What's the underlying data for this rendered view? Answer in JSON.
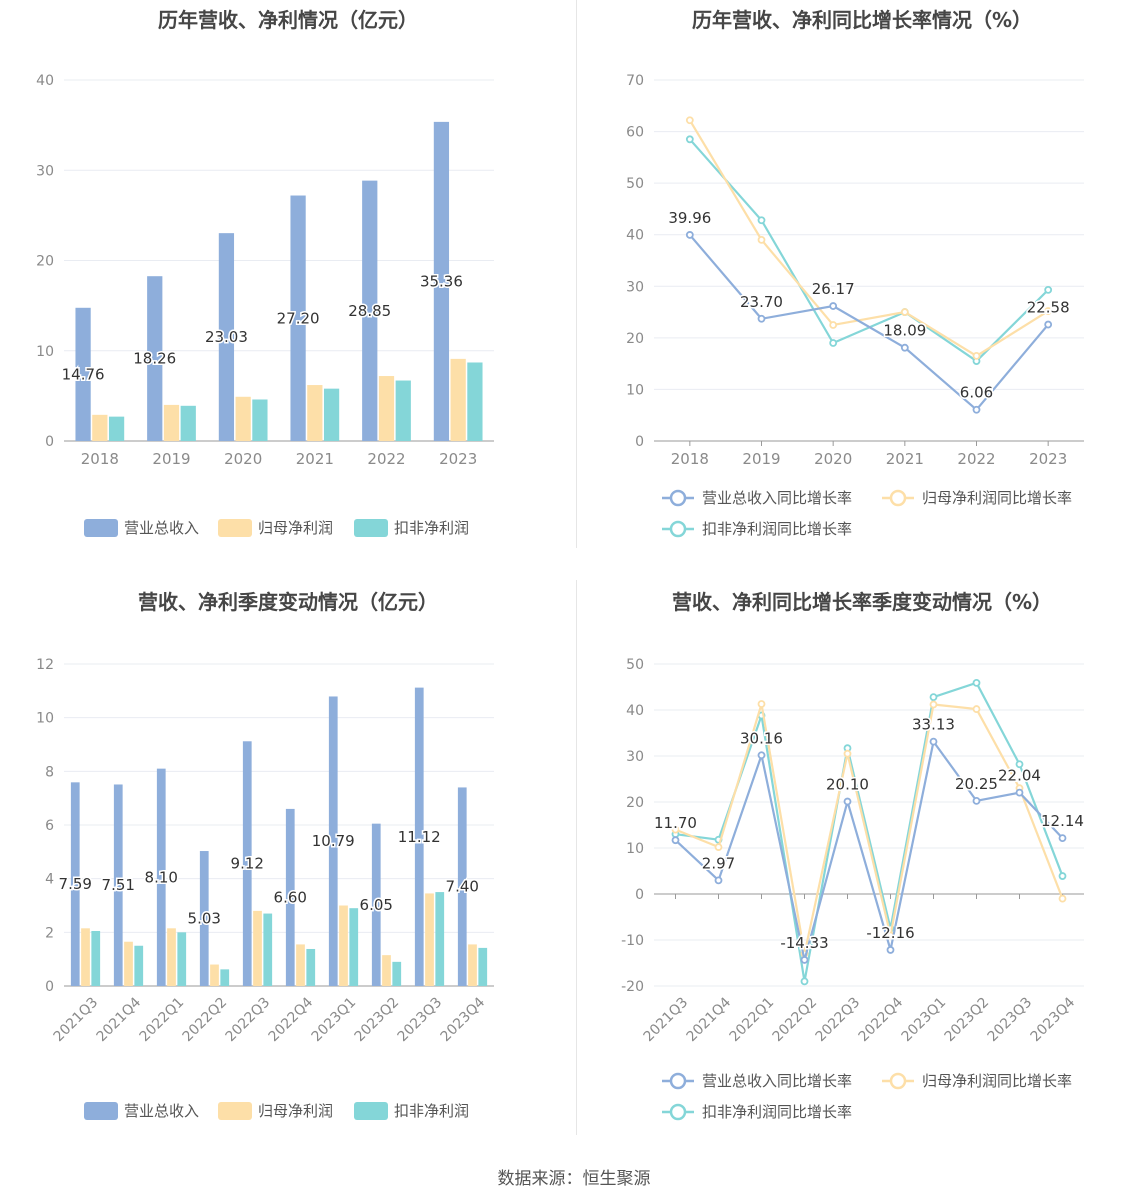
{
  "colors": {
    "revenue": "#8eaedb",
    "net_profit": "#fddfa8",
    "deducted_profit": "#84d6d8"
  },
  "source": "数据来源：恒生聚源",
  "chart_data": [
    {
      "type": "bar",
      "title": "历年营收、净利情况（亿元）",
      "categories": [
        "2018",
        "2019",
        "2020",
        "2021",
        "2022",
        "2023"
      ],
      "ylim": [
        0,
        40
      ],
      "yticks": [
        0,
        10,
        20,
        30,
        40
      ],
      "legend": "bottom",
      "series": [
        {
          "name": "营业总收入",
          "values": [
            14.76,
            18.26,
            23.03,
            27.2,
            28.85,
            35.36
          ],
          "labels": [
            "14.76",
            "18.26",
            "23.03",
            "27.20",
            "28.85",
            "35.36"
          ]
        },
        {
          "name": "归母净利润",
          "values": [
            2.9,
            4.0,
            4.9,
            6.2,
            7.2,
            9.1
          ]
        },
        {
          "name": "扣非净利润",
          "values": [
            2.7,
            3.9,
            4.6,
            5.8,
            6.7,
            8.7
          ]
        }
      ]
    },
    {
      "type": "line",
      "title": "历年营收、净利同比增长率情况（%）",
      "categories": [
        "2018",
        "2019",
        "2020",
        "2021",
        "2022",
        "2023"
      ],
      "ylim": [
        0,
        70
      ],
      "yticks": [
        0,
        10,
        20,
        30,
        40,
        50,
        60,
        70
      ],
      "legend": "bottom",
      "series": [
        {
          "name": "营业总收入同比增长率",
          "values": [
            39.96,
            23.7,
            26.17,
            18.09,
            6.06,
            22.58
          ],
          "labels": [
            "39.96",
            "23.70",
            "26.17",
            "18.09",
            "6.06",
            "22.58"
          ]
        },
        {
          "name": "归母净利润同比增长率",
          "values": [
            62.2,
            39.0,
            22.5,
            25.0,
            16.5,
            25.2
          ]
        },
        {
          "name": "扣非净利润同比增长率",
          "values": [
            58.5,
            42.8,
            19.0,
            25.0,
            15.5,
            29.3
          ]
        }
      ]
    },
    {
      "type": "bar",
      "title": "营收、净利季度变动情况（亿元）",
      "categories": [
        "2021Q3",
        "2021Q4",
        "2022Q1",
        "2022Q2",
        "2022Q3",
        "2022Q4",
        "2023Q1",
        "2023Q2",
        "2023Q3",
        "2023Q4"
      ],
      "ylim": [
        0,
        12
      ],
      "yticks": [
        0,
        2,
        4,
        6,
        8,
        10,
        12
      ],
      "legend": "bottom",
      "series": [
        {
          "name": "营业总收入",
          "values": [
            7.59,
            7.51,
            8.1,
            5.03,
            9.12,
            6.6,
            10.79,
            6.05,
            11.12,
            7.4
          ],
          "labels": [
            "7.59",
            "7.51",
            "8.10",
            "5.03",
            "9.12",
            "6.60",
            "10.79",
            "6.05",
            "11.12",
            "7.40"
          ]
        },
        {
          "name": "归母净利润",
          "values": [
            2.15,
            1.65,
            2.15,
            0.8,
            2.8,
            1.55,
            3.0,
            1.15,
            3.45,
            1.55
          ]
        },
        {
          "name": "扣非净利润",
          "values": [
            2.05,
            1.5,
            2.0,
            0.62,
            2.7,
            1.38,
            2.9,
            0.9,
            3.5,
            1.42
          ]
        }
      ]
    },
    {
      "type": "line",
      "title": "营收、净利同比增长率季度变动情况（%）",
      "categories": [
        "2021Q3",
        "2021Q4",
        "2022Q1",
        "2022Q2",
        "2022Q3",
        "2022Q4",
        "2023Q1",
        "2023Q2",
        "2023Q3",
        "2023Q4"
      ],
      "ylim": [
        -20,
        50
      ],
      "yticks": [
        -20,
        -10,
        0,
        10,
        20,
        30,
        40,
        50
      ],
      "legend": "bottom",
      "series": [
        {
          "name": "营业总收入同比增长率",
          "values": [
            11.7,
            2.97,
            30.16,
            -14.33,
            20.1,
            -12.16,
            33.13,
            20.25,
            22.04,
            12.14
          ],
          "labels": [
            "11.70",
            "2.97",
            "30.16",
            "-14.33",
            "20.10",
            "-12.16",
            "33.13",
            "20.25",
            "22.04",
            "12.14"
          ]
        },
        {
          "name": "归母净利润同比增长率",
          "values": [
            14.0,
            10.2,
            41.3,
            -13.0,
            30.5,
            -9.0,
            41.2,
            40.2,
            23.0,
            -1.0
          ]
        },
        {
          "name": "扣非净利润同比增长率",
          "values": [
            13.0,
            11.8,
            38.8,
            -19.0,
            31.7,
            -7.5,
            42.8,
            45.9,
            28.2,
            3.9
          ]
        }
      ]
    }
  ]
}
